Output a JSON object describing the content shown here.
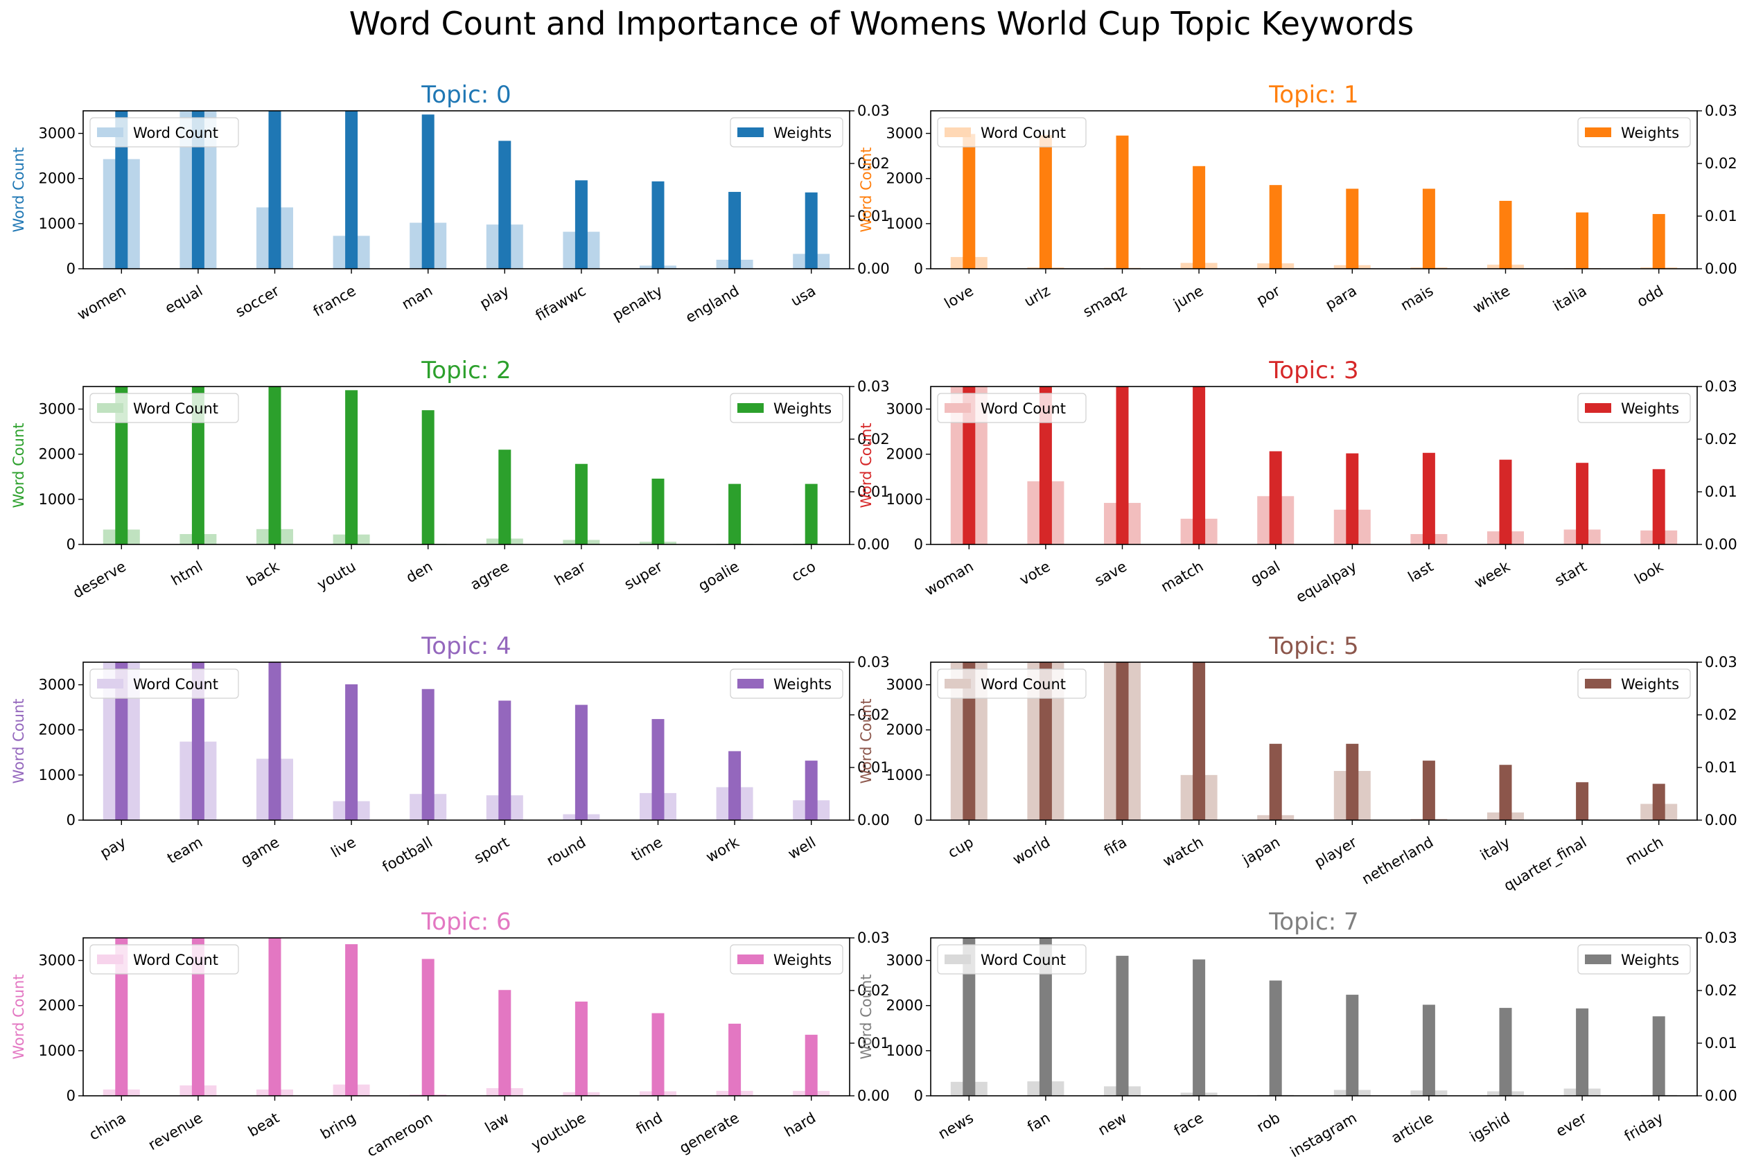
{
  "title": "Word Count and Importance of Womens World Cup Topic Keywords",
  "chart_data": {
    "type": "bar",
    "layout": "4 rows x 2 columns of dual-axis bar charts",
    "left_axis": {
      "label": "Word Count",
      "ylim": [
        0,
        3500
      ],
      "ticks": [
        0,
        1000,
        2000,
        3000
      ]
    },
    "right_axis": {
      "ylim": [
        0,
        0.03
      ],
      "ticks": [
        "0.00",
        "0.01",
        "0.02",
        "0.03"
      ]
    },
    "legend": {
      "left": "Word Count",
      "right": "Weights",
      "placement_left": "upper-left",
      "placement_right": "upper-right"
    },
    "grid": false,
    "topics": [
      {
        "title": "Topic: 0",
        "color": "#1f77b4",
        "light_color": "#bad5ea",
        "categories": [
          "women",
          "equal",
          "soccer",
          "france",
          "man",
          "play",
          "fifawwc",
          "penalty",
          "england",
          "usa"
        ],
        "word_count": [
          2430,
          3500,
          1360,
          730,
          1020,
          980,
          820,
          70,
          200,
          330
        ],
        "weights": [
          0.035,
          0.035,
          0.035,
          0.035,
          0.0293,
          0.0243,
          0.0168,
          0.0166,
          0.0146,
          0.0145
        ]
      },
      {
        "title": "Topic: 1",
        "color": "#ff7f0e",
        "light_color": "#ffd8b5",
        "categories": [
          "love",
          "urlz",
          "smaqz",
          "june",
          "por",
          "para",
          "mais",
          "white",
          "italia",
          "odd"
        ],
        "word_count": [
          260,
          30,
          20,
          130,
          120,
          80,
          30,
          90,
          15,
          30
        ],
        "weights": [
          0.0256,
          0.0254,
          0.0253,
          0.0195,
          0.0159,
          0.0152,
          0.0152,
          0.0129,
          0.0107,
          0.0104
        ]
      },
      {
        "title": "Topic: 2",
        "color": "#2ca02c",
        "light_color": "#c0e2c0",
        "categories": [
          "deserve",
          "html",
          "back",
          "youtu",
          "den",
          "agree",
          "hear",
          "super",
          "goalie",
          "cco"
        ],
        "word_count": [
          330,
          230,
          340,
          220,
          15,
          130,
          100,
          60,
          15,
          15
        ],
        "weights": [
          0.035,
          0.035,
          0.035,
          0.0293,
          0.0255,
          0.018,
          0.0153,
          0.0125,
          0.0115,
          0.0115
        ]
      },
      {
        "title": "Topic: 3",
        "color": "#d62728",
        "light_color": "#f2bebe",
        "categories": [
          "woman",
          "vote",
          "save",
          "match",
          "goal",
          "equalpay",
          "last",
          "week",
          "start",
          "look"
        ],
        "word_count": [
          3500,
          1400,
          920,
          570,
          1070,
          770,
          230,
          290,
          330,
          310
        ],
        "weights": [
          0.035,
          0.035,
          0.035,
          0.035,
          0.0177,
          0.0173,
          0.0174,
          0.0161,
          0.0155,
          0.0143
        ]
      },
      {
        "title": "Topic: 4",
        "color": "#9467bd",
        "light_color": "#ddd0ed",
        "categories": [
          "pay",
          "team",
          "game",
          "live",
          "football",
          "sport",
          "round",
          "time",
          "work",
          "well"
        ],
        "word_count": [
          3500,
          1740,
          1360,
          420,
          580,
          550,
          130,
          600,
          730,
          440
        ],
        "weights": [
          0.035,
          0.035,
          0.035,
          0.0258,
          0.0249,
          0.0227,
          0.0219,
          0.0192,
          0.0131,
          0.0113
        ]
      },
      {
        "title": "Topic: 5",
        "color": "#8c564b",
        "light_color": "#decbc5",
        "categories": [
          "cup",
          "world",
          "fifa",
          "watch",
          "japan",
          "player",
          "netherland",
          "italy",
          "quarter_final",
          "much"
        ],
        "word_count": [
          3500,
          3500,
          3500,
          1000,
          110,
          1090,
          30,
          170,
          10,
          360
        ],
        "weights": [
          0.035,
          0.035,
          0.035,
          0.035,
          0.0145,
          0.0145,
          0.0113,
          0.0105,
          0.0072,
          0.0069
        ]
      },
      {
        "title": "Topic: 6",
        "color": "#e377c2",
        "light_color": "#f7d4ec",
        "categories": [
          "china",
          "revenue",
          "beat",
          "bring",
          "cameroon",
          "law",
          "youtube",
          "find",
          "generate",
          "hard"
        ],
        "word_count": [
          140,
          230,
          140,
          250,
          30,
          170,
          80,
          100,
          110,
          110
        ],
        "weights": [
          0.035,
          0.035,
          0.035,
          0.0288,
          0.026,
          0.0201,
          0.0179,
          0.0157,
          0.0137,
          0.0116
        ]
      },
      {
        "title": "Topic: 7",
        "color": "#7f7f7f",
        "light_color": "#d9d9d9",
        "categories": [
          "news",
          "fan",
          "new",
          "face",
          "rob",
          "instagram",
          "article",
          "igshid",
          "ever",
          "friday"
        ],
        "word_count": [
          310,
          320,
          210,
          70,
          20,
          130,
          120,
          100,
          160,
          20
        ],
        "weights": [
          0.035,
          0.035,
          0.0266,
          0.0259,
          0.0219,
          0.0192,
          0.0173,
          0.0167,
          0.0166,
          0.0151
        ]
      }
    ]
  }
}
